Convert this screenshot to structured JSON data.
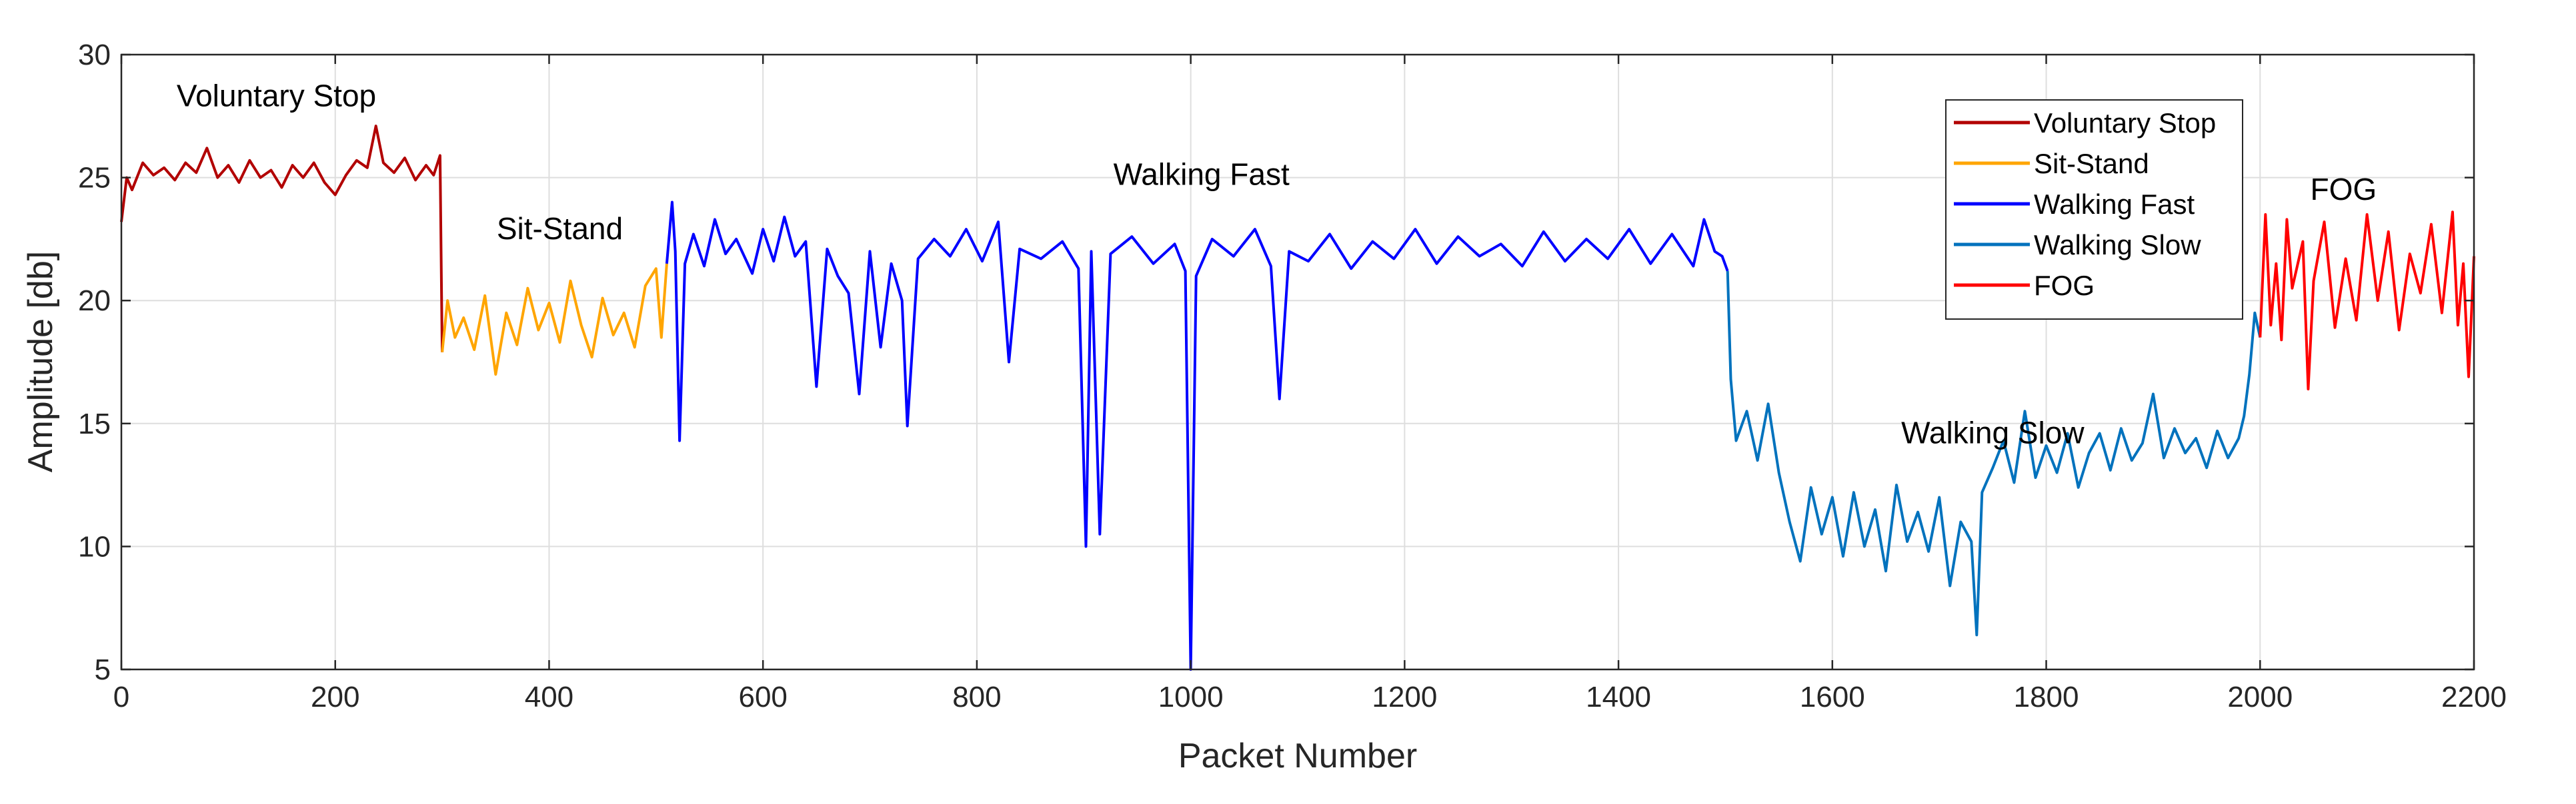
{
  "chart_data": {
    "type": "line",
    "xlabel": "Packet Number",
    "ylabel": "Amplitude [db]",
    "xlim": [
      0,
      2200
    ],
    "ylim": [
      5,
      30
    ],
    "xticks": [
      0,
      200,
      400,
      600,
      800,
      1000,
      1200,
      1400,
      1600,
      1800,
      2000,
      2200
    ],
    "yticks": [
      5,
      10,
      15,
      20,
      25,
      30
    ],
    "grid": true,
    "legend_position": "top-right",
    "series": [
      {
        "name": "Voluntary Stop",
        "color": "#b20000",
        "points": [
          [
            0,
            23.2
          ],
          [
            5,
            25.0
          ],
          [
            10,
            24.5
          ],
          [
            20,
            25.6
          ],
          [
            30,
            25.1
          ],
          [
            40,
            25.4
          ],
          [
            50,
            24.9
          ],
          [
            60,
            25.6
          ],
          [
            70,
            25.2
          ],
          [
            80,
            26.2
          ],
          [
            90,
            25.0
          ],
          [
            100,
            25.5
          ],
          [
            110,
            24.8
          ],
          [
            120,
            25.7
          ],
          [
            130,
            25.0
          ],
          [
            140,
            25.3
          ],
          [
            150,
            24.6
          ],
          [
            160,
            25.5
          ],
          [
            170,
            25.0
          ],
          [
            180,
            25.6
          ],
          [
            190,
            24.8
          ],
          [
            200,
            24.3
          ],
          [
            210,
            25.1
          ],
          [
            220,
            25.7
          ],
          [
            230,
            25.4
          ],
          [
            238,
            27.1
          ],
          [
            245,
            25.6
          ],
          [
            255,
            25.2
          ],
          [
            265,
            25.8
          ],
          [
            275,
            24.9
          ],
          [
            285,
            25.5
          ],
          [
            292,
            25.1
          ],
          [
            298,
            25.9
          ],
          [
            300,
            17.9
          ]
        ]
      },
      {
        "name": "Sit-Stand",
        "color": "#ffa500",
        "points": [
          [
            300,
            17.9
          ],
          [
            305,
            20.0
          ],
          [
            312,
            18.5
          ],
          [
            320,
            19.3
          ],
          [
            330,
            18.0
          ],
          [
            340,
            20.2
          ],
          [
            350,
            17.0
          ],
          [
            360,
            19.5
          ],
          [
            370,
            18.2
          ],
          [
            380,
            20.5
          ],
          [
            390,
            18.8
          ],
          [
            400,
            19.9
          ],
          [
            410,
            18.3
          ],
          [
            420,
            20.8
          ],
          [
            430,
            19.0
          ],
          [
            440,
            17.7
          ],
          [
            450,
            20.1
          ],
          [
            460,
            18.6
          ],
          [
            470,
            19.5
          ],
          [
            480,
            18.1
          ],
          [
            490,
            20.6
          ],
          [
            500,
            21.3
          ],
          [
            505,
            18.5
          ],
          [
            510,
            21.5
          ]
        ]
      },
      {
        "name": "Walking Fast",
        "color": "#0000ff",
        "points": [
          [
            510,
            21.5
          ],
          [
            515,
            24.0
          ],
          [
            518,
            22.0
          ],
          [
            522,
            14.3
          ],
          [
            527,
            21.5
          ],
          [
            535,
            22.7
          ],
          [
            545,
            21.4
          ],
          [
            555,
            23.3
          ],
          [
            565,
            21.9
          ],
          [
            575,
            22.5
          ],
          [
            590,
            21.1
          ],
          [
            600,
            22.9
          ],
          [
            610,
            21.6
          ],
          [
            620,
            23.4
          ],
          [
            630,
            21.8
          ],
          [
            640,
            22.4
          ],
          [
            650,
            16.5
          ],
          [
            660,
            22.1
          ],
          [
            670,
            21.0
          ],
          [
            680,
            20.3
          ],
          [
            690,
            16.2
          ],
          [
            700,
            22.0
          ],
          [
            710,
            18.1
          ],
          [
            720,
            21.5
          ],
          [
            730,
            20.0
          ],
          [
            735,
            14.9
          ],
          [
            745,
            21.7
          ],
          [
            760,
            22.5
          ],
          [
            775,
            21.8
          ],
          [
            790,
            22.9
          ],
          [
            805,
            21.6
          ],
          [
            820,
            23.2
          ],
          [
            830,
            17.5
          ],
          [
            840,
            22.1
          ],
          [
            860,
            21.7
          ],
          [
            880,
            22.4
          ],
          [
            895,
            21.3
          ],
          [
            902,
            10.0
          ],
          [
            907,
            22.0
          ],
          [
            915,
            10.5
          ],
          [
            925,
            21.9
          ],
          [
            945,
            22.6
          ],
          [
            965,
            21.5
          ],
          [
            985,
            22.3
          ],
          [
            995,
            21.2
          ],
          [
            1000,
            5.0
          ],
          [
            1005,
            21.0
          ],
          [
            1020,
            22.5
          ],
          [
            1040,
            21.8
          ],
          [
            1060,
            22.9
          ],
          [
            1075,
            21.4
          ],
          [
            1083,
            16.0
          ],
          [
            1092,
            22.0
          ],
          [
            1110,
            21.6
          ],
          [
            1130,
            22.7
          ],
          [
            1150,
            21.3
          ],
          [
            1170,
            22.4
          ],
          [
            1190,
            21.7
          ],
          [
            1210,
            22.9
          ],
          [
            1230,
            21.5
          ],
          [
            1250,
            22.6
          ],
          [
            1270,
            21.8
          ],
          [
            1290,
            22.3
          ],
          [
            1310,
            21.4
          ],
          [
            1330,
            22.8
          ],
          [
            1350,
            21.6
          ],
          [
            1370,
            22.5
          ],
          [
            1390,
            21.7
          ],
          [
            1410,
            22.9
          ],
          [
            1430,
            21.5
          ],
          [
            1450,
            22.7
          ],
          [
            1470,
            21.4
          ],
          [
            1480,
            23.3
          ],
          [
            1490,
            22.0
          ],
          [
            1497,
            21.8
          ],
          [
            1502,
            21.2
          ]
        ]
      },
      {
        "name": "Walking Slow",
        "color": "#0072bd",
        "points": [
          [
            1502,
            21.2
          ],
          [
            1505,
            16.8
          ],
          [
            1510,
            14.3
          ],
          [
            1520,
            15.5
          ],
          [
            1530,
            13.5
          ],
          [
            1540,
            15.8
          ],
          [
            1550,
            13.0
          ],
          [
            1560,
            11.0
          ],
          [
            1570,
            9.4
          ],
          [
            1580,
            12.4
          ],
          [
            1590,
            10.5
          ],
          [
            1600,
            12.0
          ],
          [
            1610,
            9.6
          ],
          [
            1620,
            12.2
          ],
          [
            1630,
            10.0
          ],
          [
            1640,
            11.5
          ],
          [
            1650,
            9.0
          ],
          [
            1660,
            12.5
          ],
          [
            1670,
            10.2
          ],
          [
            1680,
            11.4
          ],
          [
            1690,
            9.8
          ],
          [
            1700,
            12.0
          ],
          [
            1710,
            8.4
          ],
          [
            1720,
            11.0
          ],
          [
            1730,
            10.2
          ],
          [
            1735,
            6.4
          ],
          [
            1740,
            12.2
          ],
          [
            1750,
            13.2
          ],
          [
            1760,
            14.3
          ],
          [
            1770,
            12.6
          ],
          [
            1780,
            15.5
          ],
          [
            1790,
            12.8
          ],
          [
            1800,
            14.1
          ],
          [
            1810,
            13.0
          ],
          [
            1820,
            14.6
          ],
          [
            1830,
            12.4
          ],
          [
            1840,
            13.8
          ],
          [
            1850,
            14.6
          ],
          [
            1860,
            13.1
          ],
          [
            1870,
            14.8
          ],
          [
            1880,
            13.5
          ],
          [
            1890,
            14.2
          ],
          [
            1900,
            16.2
          ],
          [
            1910,
            13.6
          ],
          [
            1920,
            14.8
          ],
          [
            1930,
            13.8
          ],
          [
            1940,
            14.4
          ],
          [
            1950,
            13.2
          ],
          [
            1960,
            14.7
          ],
          [
            1970,
            13.6
          ],
          [
            1980,
            14.4
          ],
          [
            1985,
            15.3
          ],
          [
            1990,
            17.0
          ],
          [
            1995,
            19.5
          ],
          [
            2000,
            18.5
          ]
        ]
      },
      {
        "name": "FOG",
        "color": "#ff0000",
        "points": [
          [
            2000,
            18.5
          ],
          [
            2005,
            23.5
          ],
          [
            2010,
            19.0
          ],
          [
            2015,
            21.5
          ],
          [
            2020,
            18.4
          ],
          [
            2025,
            23.3
          ],
          [
            2030,
            20.5
          ],
          [
            2040,
            22.4
          ],
          [
            2045,
            16.4
          ],
          [
            2050,
            20.8
          ],
          [
            2060,
            23.2
          ],
          [
            2070,
            18.9
          ],
          [
            2080,
            21.7
          ],
          [
            2090,
            19.2
          ],
          [
            2100,
            23.5
          ],
          [
            2110,
            20.0
          ],
          [
            2120,
            22.8
          ],
          [
            2130,
            18.8
          ],
          [
            2140,
            21.9
          ],
          [
            2150,
            20.3
          ],
          [
            2160,
            23.1
          ],
          [
            2170,
            19.5
          ],
          [
            2180,
            23.6
          ],
          [
            2185,
            19.0
          ],
          [
            2190,
            21.5
          ],
          [
            2195,
            16.9
          ],
          [
            2200,
            21.8
          ]
        ]
      }
    ],
    "annotations": [
      {
        "text": "Voluntary Stop",
        "x": 145,
        "y": 27.9
      },
      {
        "text": "Sit-Stand",
        "x": 410,
        "y": 22.5
      },
      {
        "text": "Walking Fast",
        "x": 1010,
        "y": 24.7
      },
      {
        "text": "Walking Slow",
        "x": 1750,
        "y": 14.2
      },
      {
        "text": "FOG",
        "x": 2078,
        "y": 24.1
      }
    ]
  }
}
